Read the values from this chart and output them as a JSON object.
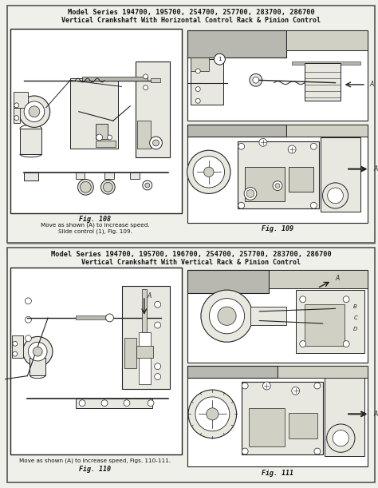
{
  "bg_color": "#f0f0eb",
  "panel_bg": "#ffffff",
  "border_color": "#444444",
  "top_panel": {
    "title_line1": "Model Series 194700, 195700, 254700, 257700, 283700, 286700",
    "title_line2": "Vertical Crankshaft With Horizontal Control Rack & Pinion Control",
    "fig108_label": "Fig. 108",
    "fig108_caption1": "Move as shown (A) to increase speed.",
    "fig108_caption2": "Slide control (1), Fig. 109.",
    "fig109_label": "Fig. 109"
  },
  "bottom_panel": {
    "title_line1": "Model Series 194700, 195700, 196700, 254700, 257700, 283700, 286700",
    "title_line2": "Vertical Crankshaft With Vertical Rack & Pinion Control",
    "fig110_label": "Fig. 110",
    "fig110_caption1": "Move as shown (A) to increase speed, Figs. 110-111.",
    "fig111_label": "Fig. 111"
  },
  "line_color": "#222222",
  "fill_light": "#e8e8e0",
  "fill_mid": "#d0d0c4",
  "fill_dark": "#b8b8b0"
}
